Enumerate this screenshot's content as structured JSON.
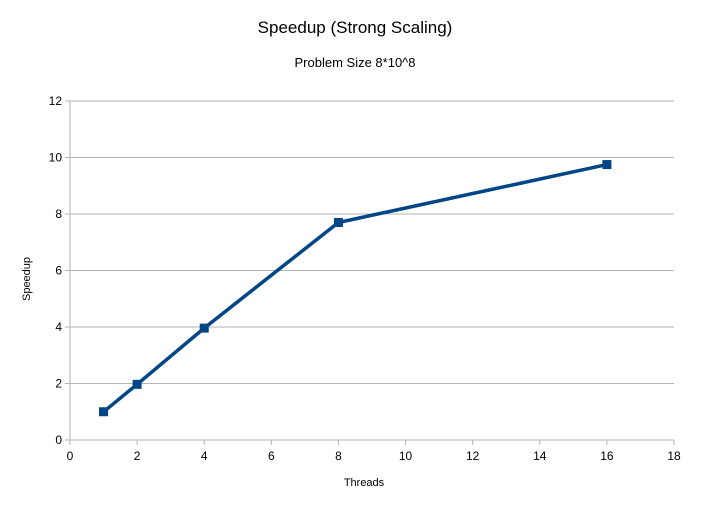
{
  "chart_data": {
    "type": "line",
    "title": "Speedup (Strong Scaling)",
    "subtitle": "Problem Size 8*10^8",
    "xlabel": "Threads",
    "ylabel": "Speedup",
    "xlim": [
      0,
      18
    ],
    "ylim": [
      0,
      12
    ],
    "x_ticks": [
      0,
      2,
      4,
      6,
      8,
      10,
      12,
      14,
      16,
      18
    ],
    "y_ticks": [
      0,
      2,
      4,
      6,
      8,
      10,
      12
    ],
    "grid": "horizontal",
    "legend": "none",
    "series": [
      {
        "x": [
          1,
          2,
          4,
          8,
          16
        ],
        "values": [
          1.0,
          1.97,
          3.96,
          7.7,
          9.75
        ],
        "color": "#004586",
        "marker": "square"
      }
    ]
  }
}
